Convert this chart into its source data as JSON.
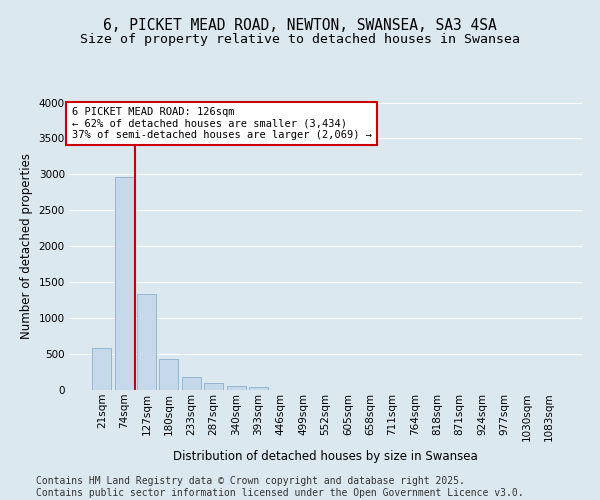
{
  "title1": "6, PICKET MEAD ROAD, NEWTON, SWANSEA, SA3 4SA",
  "title2": "Size of property relative to detached houses in Swansea",
  "xlabel": "Distribution of detached houses by size in Swansea",
  "ylabel": "Number of detached properties",
  "categories": [
    "21sqm",
    "74sqm",
    "127sqm",
    "180sqm",
    "233sqm",
    "287sqm",
    "340sqm",
    "393sqm",
    "446sqm",
    "499sqm",
    "552sqm",
    "605sqm",
    "658sqm",
    "711sqm",
    "764sqm",
    "818sqm",
    "871sqm",
    "924sqm",
    "977sqm",
    "1030sqm",
    "1083sqm"
  ],
  "values": [
    590,
    2960,
    1340,
    430,
    175,
    100,
    55,
    35,
    0,
    0,
    0,
    0,
    0,
    0,
    0,
    0,
    0,
    0,
    0,
    0,
    0
  ],
  "bar_color": "#c5d9ea",
  "bar_edge_color": "#8ab0cc",
  "vline_color": "#cc0000",
  "annotation_box_text": "6 PICKET MEAD ROAD: 126sqm\n← 62% of detached houses are smaller (3,434)\n37% of semi-detached houses are larger (2,069) →",
  "annotation_box_color": "#cc0000",
  "ylim": [
    0,
    4000
  ],
  "yticks": [
    0,
    500,
    1000,
    1500,
    2000,
    2500,
    3000,
    3500,
    4000
  ],
  "background_color": "#dce8f0",
  "grid_color": "#ffffff",
  "footer_text": "Contains HM Land Registry data © Crown copyright and database right 2025.\nContains public sector information licensed under the Open Government Licence v3.0.",
  "title_fontsize": 10.5,
  "subtitle_fontsize": 9.5,
  "axis_label_fontsize": 8.5,
  "tick_fontsize": 7.5,
  "annotation_fontsize": 7.5,
  "footer_fontsize": 7
}
